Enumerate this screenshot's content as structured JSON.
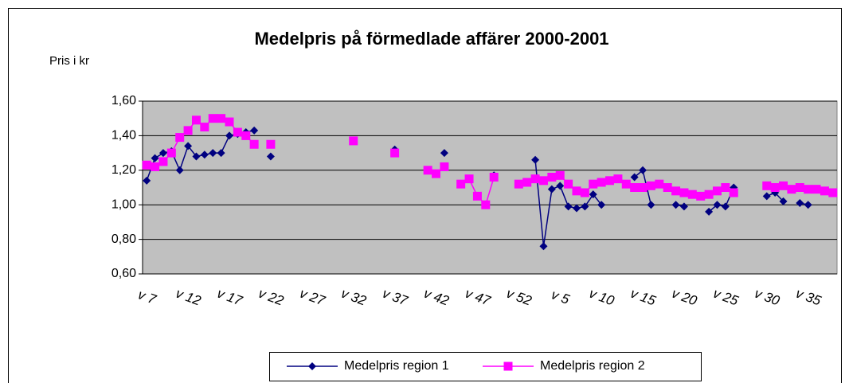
{
  "chart_data": {
    "type": "line",
    "title": "Medelpris på förmedlade affärer 2000-2001",
    "y_label": "Pris i kr",
    "categories": [
      "v 7",
      null,
      null,
      null,
      null,
      "v 12",
      null,
      null,
      null,
      null,
      "v 17",
      null,
      null,
      null,
      null,
      "v 22",
      null,
      null,
      null,
      null,
      "v 27",
      null,
      null,
      null,
      null,
      "v 32",
      null,
      null,
      null,
      null,
      "v 37",
      null,
      null,
      null,
      null,
      "v 42",
      null,
      null,
      null,
      null,
      "v 47",
      null,
      null,
      null,
      null,
      "v 52",
      null,
      null,
      null,
      null,
      "v 5",
      null,
      null,
      null,
      null,
      "v 10",
      null,
      null,
      null,
      null,
      "v 15",
      null,
      null,
      null,
      null,
      "v 20",
      null,
      null,
      null,
      null,
      "v 25",
      null,
      null,
      null,
      null,
      "v 30",
      null,
      null,
      null,
      null,
      "v 35",
      null,
      null,
      null
    ],
    "series": [
      {
        "name": "Medelpris region 1",
        "color": "#000080",
        "marker": "diamond",
        "values": [
          1.14,
          1.27,
          1.3,
          1.31,
          1.2,
          1.34,
          1.28,
          1.29,
          1.3,
          1.3,
          1.4,
          1.41,
          1.42,
          1.43,
          null,
          1.28,
          null,
          null,
          null,
          null,
          null,
          null,
          null,
          null,
          null,
          null,
          null,
          null,
          null,
          null,
          1.32,
          null,
          null,
          null,
          null,
          null,
          1.3,
          null,
          null,
          null,
          null,
          null,
          1.17,
          null,
          null,
          null,
          null,
          1.26,
          0.76,
          1.09,
          1.11,
          0.99,
          0.98,
          0.99,
          1.06,
          1.0,
          null,
          null,
          null,
          1.16,
          1.2,
          1.0,
          null,
          null,
          1.0,
          0.99,
          null,
          null,
          0.96,
          1.0,
          0.99,
          1.1,
          null,
          null,
          null,
          1.05,
          1.07,
          1.02,
          null,
          1.01,
          1.0,
          null,
          null,
          null
        ]
      },
      {
        "name": "Medelpris region 2",
        "color": "#ff00ff",
        "marker": "square",
        "values": [
          1.23,
          1.22,
          1.25,
          1.3,
          1.39,
          1.43,
          1.49,
          1.45,
          1.5,
          1.5,
          1.48,
          1.42,
          1.4,
          1.35,
          null,
          1.35,
          null,
          null,
          null,
          null,
          null,
          null,
          null,
          null,
          null,
          1.37,
          null,
          null,
          null,
          null,
          1.3,
          null,
          null,
          null,
          1.2,
          1.18,
          1.22,
          null,
          1.12,
          1.15,
          1.05,
          1.0,
          1.16,
          null,
          null,
          1.12,
          1.13,
          1.15,
          1.14,
          1.16,
          1.17,
          1.12,
          1.08,
          1.07,
          1.12,
          1.13,
          1.14,
          1.15,
          1.12,
          1.1,
          1.1,
          1.11,
          1.12,
          1.1,
          1.08,
          1.07,
          1.06,
          1.05,
          1.06,
          1.08,
          1.1,
          1.07,
          null,
          null,
          null,
          1.11,
          1.1,
          1.11,
          1.09,
          1.1,
          1.09,
          1.09,
          1.08,
          1.07
        ]
      }
    ],
    "ylim": [
      0.6,
      1.6
    ],
    "yticks": [
      {
        "value": 0.6,
        "label": "0,60"
      },
      {
        "value": 0.8,
        "label": "0,80"
      },
      {
        "value": 1.0,
        "label": "1,00"
      },
      {
        "value": 1.2,
        "label": "1,20"
      },
      {
        "value": 1.4,
        "label": "1,40"
      },
      {
        "value": 1.6,
        "label": "1,60"
      }
    ],
    "grid": true,
    "background": "#c0c0c0",
    "legend": "bottom"
  }
}
